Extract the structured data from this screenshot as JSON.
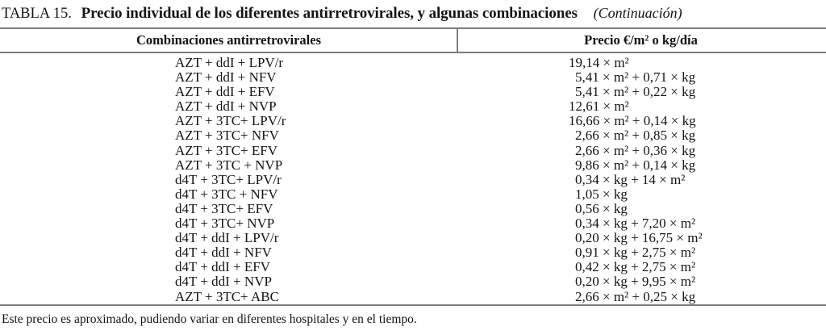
{
  "caption": {
    "label": "TABLA 15.",
    "title": "Precio individual de los diferentes antirretrovirales, y algunas combinaciones",
    "continuation": "(Continuación)"
  },
  "table": {
    "headers": [
      "Combinaciones antirretrovirales",
      "Precio €/m² o kg/día"
    ],
    "rows": [
      {
        "combination": "AZT + ddI + LPV/r",
        "price": "19,14 × m²"
      },
      {
        "combination": "AZT + ddI + NFV",
        "price": "5,41 × m² + 0,71 × kg"
      },
      {
        "combination": "AZT + ddI + EFV",
        "price": "5,41 × m² + 0,22 × kg"
      },
      {
        "combination": "AZT + ddI + NVP",
        "price": "12,61 × m²"
      },
      {
        "combination": "AZT + 3TC+ LPV/r",
        "price": "16,66 × m² + 0,14 × kg"
      },
      {
        "combination": "AZT + 3TC+ NFV",
        "price": "2,66 × m² + 0,85 × kg"
      },
      {
        "combination": "AZT + 3TC+ EFV",
        "price": "2,66 × m² + 0,36 × kg"
      },
      {
        "combination": "AZT + 3TC + NVP",
        "price": "9,86 × m² + 0,14 × kg"
      },
      {
        "combination": "d4T + 3TC+ LPV/r",
        "price": "0,34 × kg + 14 × m²"
      },
      {
        "combination": "d4T + 3TC + NFV",
        "price": "1,05 × kg"
      },
      {
        "combination": "d4T + 3TC+ EFV",
        "price": "0,56 × kg"
      },
      {
        "combination": "d4T + 3TC+ NVP",
        "price": "0,34 × kg + 7,20 × m²"
      },
      {
        "combination": "d4T + ddI + LPV/r",
        "price": "0,20 × kg + 16,75 × m²"
      },
      {
        "combination": "d4T + ddI + NFV",
        "price": "0,91 × kg + 2,75 × m²"
      },
      {
        "combination": "d4T + ddI + EFV",
        "price": "0,42 × kg + 2,75 × m²"
      },
      {
        "combination": "d4T + ddI + NVP",
        "price": "0,20 × kg + 9,95 × m²"
      },
      {
        "combination": "AZT + 3TC+ ABC",
        "price": "2,66 × m² + 0,25 × kg"
      }
    ]
  },
  "footnote": "Este precio es aproximado, pudiendo variar en diferentes hospitales y en el tiempo.",
  "colors": {
    "text": "#141414",
    "rule": "#7d7d7d",
    "background": "#ffffff"
  }
}
